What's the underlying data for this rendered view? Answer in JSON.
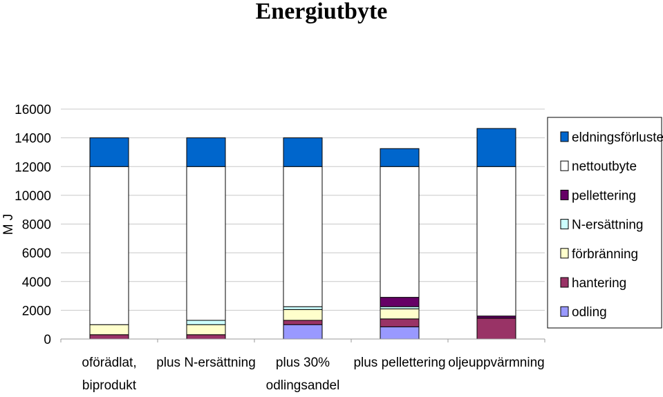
{
  "chart_data": {
    "type": "bar",
    "stacked": true,
    "title": "Energiutbyte",
    "ylabel": "M J",
    "xlabel": "",
    "ylim": [
      0,
      16000
    ],
    "yticks": [
      0,
      2000,
      4000,
      6000,
      8000,
      10000,
      12000,
      14000,
      16000
    ],
    "grid": true,
    "legend_position": "right",
    "categories": [
      [
        "oförädlat,",
        "biprodukt"
      ],
      [
        "plus N-ersättning"
      ],
      [
        "plus 30%",
        "odlingsandel"
      ],
      [
        "plus pellettering"
      ],
      [
        "oljeuppvärmning"
      ]
    ],
    "series": [
      {
        "name": "odling",
        "color": "#9999ff",
        "values": [
          0,
          0,
          1000,
          850,
          0
        ]
      },
      {
        "name": "hantering",
        "color": "#993366",
        "values": [
          300,
          300,
          300,
          550,
          1450
        ]
      },
      {
        "name": "förbränning",
        "color": "#ffffcc",
        "values": [
          700,
          700,
          750,
          700,
          0
        ]
      },
      {
        "name": "N-ersättning",
        "color": "#ccffff",
        "values": [
          0,
          300,
          200,
          150,
          0
        ]
      },
      {
        "name": "pellettering",
        "color": "#660066",
        "values": [
          0,
          0,
          0,
          650,
          150
        ]
      },
      {
        "name": "nettoutbyte",
        "color": "#ffffff",
        "values": [
          11000,
          10700,
          9750,
          9100,
          10400
        ]
      },
      {
        "name": "eldningsförluster",
        "color": "#0066cc",
        "values": [
          2000,
          2000,
          2000,
          1250,
          2650
        ]
      }
    ]
  }
}
